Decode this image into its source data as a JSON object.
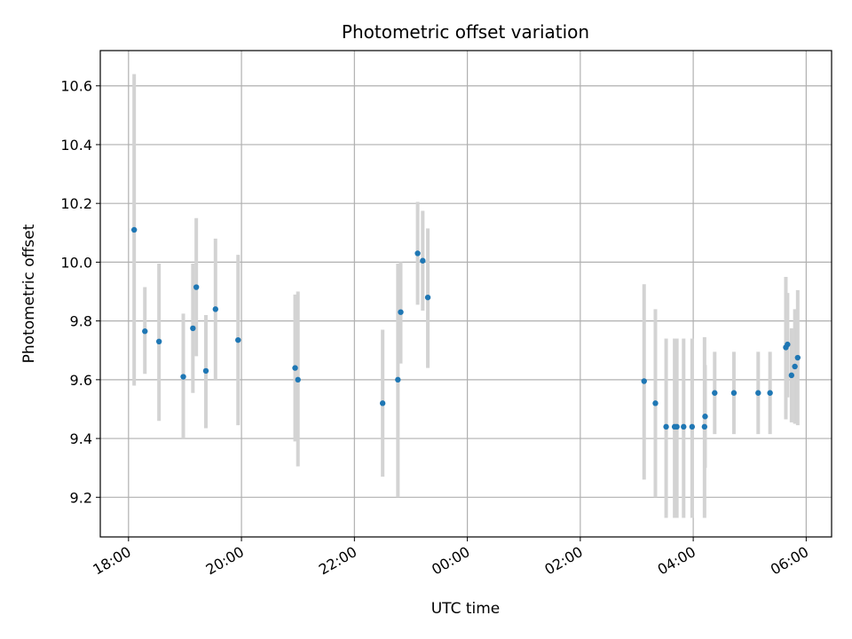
{
  "chart_data": {
    "type": "scatter",
    "title": "Photometric offset variation",
    "xlabel": "UTC time",
    "ylabel": "Photometric offset",
    "grid": true,
    "x_tick_labels": [
      "18:00",
      "20:00",
      "22:00",
      "00:00",
      "02:00",
      "04:00",
      "06:00"
    ],
    "x_tick_hours": [
      0,
      2,
      4,
      6,
      8,
      10,
      12
    ],
    "y_ticks": [
      9.2,
      9.4,
      9.6,
      9.8,
      10.0,
      10.2,
      10.4,
      10.6
    ],
    "y_tick_labels": [
      "9.2",
      "9.4",
      "9.6",
      "9.8",
      "10.0",
      "10.2",
      "10.4",
      "10.6"
    ],
    "xlim_hours": [
      -0.5,
      12.45
    ],
    "ylim": [
      9.065,
      10.72
    ],
    "point_color": "#1f77b4",
    "errorbar_color": "#d3d3d3",
    "points": [
      {
        "t_hours": 0.1,
        "y": 10.11,
        "ylo": 9.58,
        "yhi": 10.64
      },
      {
        "t_hours": 0.29,
        "y": 9.765,
        "ylo": 9.62,
        "yhi": 9.915
      },
      {
        "t_hours": 0.54,
        "y": 9.73,
        "ylo": 9.46,
        "yhi": 9.995
      },
      {
        "t_hours": 0.97,
        "y": 9.61,
        "ylo": 9.4,
        "yhi": 9.825
      },
      {
        "t_hours": 1.14,
        "y": 9.775,
        "ylo": 9.555,
        "yhi": 9.995
      },
      {
        "t_hours": 1.2,
        "y": 9.915,
        "ylo": 9.68,
        "yhi": 10.15
      },
      {
        "t_hours": 1.37,
        "y": 9.63,
        "ylo": 9.435,
        "yhi": 9.82
      },
      {
        "t_hours": 1.54,
        "y": 9.84,
        "ylo": 9.6,
        "yhi": 10.08
      },
      {
        "t_hours": 1.94,
        "y": 9.735,
        "ylo": 9.445,
        "yhi": 10.025
      },
      {
        "t_hours": 2.95,
        "y": 9.64,
        "ylo": 9.39,
        "yhi": 9.89
      },
      {
        "t_hours": 3.0,
        "y": 9.6,
        "ylo": 9.305,
        "yhi": 9.9
      },
      {
        "t_hours": 4.5,
        "y": 9.52,
        "ylo": 9.27,
        "yhi": 9.77
      },
      {
        "t_hours": 4.77,
        "y": 9.6,
        "ylo": 9.2,
        "yhi": 9.995
      },
      {
        "t_hours": 4.82,
        "y": 9.83,
        "ylo": 9.655,
        "yhi": 10.0
      },
      {
        "t_hours": 5.12,
        "y": 10.03,
        "ylo": 9.855,
        "yhi": 10.205
      },
      {
        "t_hours": 5.21,
        "y": 10.005,
        "ylo": 9.835,
        "yhi": 10.175
      },
      {
        "t_hours": 5.3,
        "y": 9.88,
        "ylo": 9.64,
        "yhi": 10.115
      },
      {
        "t_hours": 9.13,
        "y": 9.595,
        "ylo": 9.26,
        "yhi": 9.925
      },
      {
        "t_hours": 9.33,
        "y": 9.52,
        "ylo": 9.2,
        "yhi": 9.84
      },
      {
        "t_hours": 9.52,
        "y": 9.44,
        "ylo": 9.13,
        "yhi": 9.74
      },
      {
        "t_hours": 9.67,
        "y": 9.44,
        "ylo": 9.13,
        "yhi": 9.74
      },
      {
        "t_hours": 9.71,
        "y": 9.44,
        "ylo": 9.13,
        "yhi": 9.74
      },
      {
        "t_hours": 9.83,
        "y": 9.44,
        "ylo": 9.13,
        "yhi": 9.74
      },
      {
        "t_hours": 9.98,
        "y": 9.44,
        "ylo": 9.13,
        "yhi": 9.74
      },
      {
        "t_hours": 10.2,
        "y": 9.44,
        "ylo": 9.13,
        "yhi": 9.745
      },
      {
        "t_hours": 10.21,
        "y": 9.475,
        "ylo": 9.3,
        "yhi": 9.65
      },
      {
        "t_hours": 10.38,
        "y": 9.555,
        "ylo": 9.415,
        "yhi": 9.695
      },
      {
        "t_hours": 10.72,
        "y": 9.555,
        "ylo": 9.415,
        "yhi": 9.695
      },
      {
        "t_hours": 11.15,
        "y": 9.555,
        "ylo": 9.415,
        "yhi": 9.695
      },
      {
        "t_hours": 11.36,
        "y": 9.555,
        "ylo": 9.415,
        "yhi": 9.695
      },
      {
        "t_hours": 11.64,
        "y": 9.71,
        "ylo": 9.465,
        "yhi": 9.95
      },
      {
        "t_hours": 11.67,
        "y": 9.72,
        "ylo": 9.54,
        "yhi": 9.895
      },
      {
        "t_hours": 11.74,
        "y": 9.615,
        "ylo": 9.455,
        "yhi": 9.775
      },
      {
        "t_hours": 11.8,
        "y": 9.645,
        "ylo": 9.45,
        "yhi": 9.84
      },
      {
        "t_hours": 11.85,
        "y": 9.675,
        "ylo": 9.445,
        "yhi": 9.905
      }
    ]
  }
}
